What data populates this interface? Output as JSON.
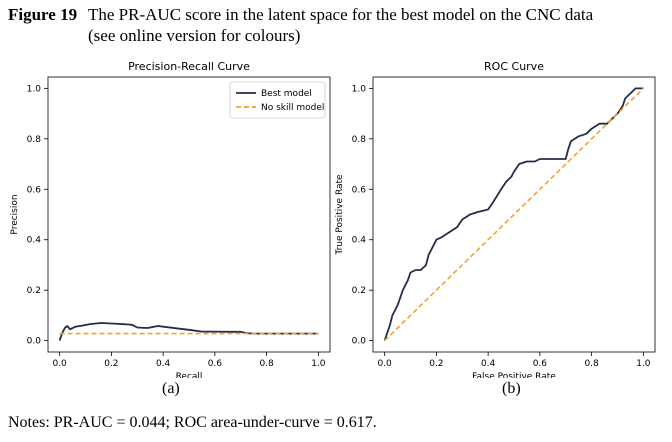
{
  "caption": {
    "label": "Figure 19",
    "line1": "The PR-AUC score in the latent space for the best model on the CNC data",
    "line2": "(see online version for colours)"
  },
  "colors": {
    "best": "#262b4a",
    "noskill": "#f2a32b"
  },
  "notes": "Notes: PR-AUC = 0.044; ROC area-under-curve = 0.617.",
  "chart_data": [
    {
      "type": "line",
      "subfig": "(a)",
      "title": "Precision-Recall Curve",
      "xlabel": "Recall",
      "ylabel": "Precision",
      "xlim": [
        0,
        1
      ],
      "ylim": [
        0,
        1
      ],
      "xticks": [
        "0.0",
        "0.2",
        "0.4",
        "0.6",
        "0.8",
        "1.0"
      ],
      "yticks": [
        "0.0",
        "0.2",
        "0.4",
        "0.6",
        "0.8",
        "1.0"
      ],
      "legend_position": "top-right",
      "series": [
        {
          "name": "Best model",
          "style": "solid",
          "color": "#262b4a",
          "x": [
            0.0,
            0.01,
            0.02,
            0.03,
            0.04,
            0.06,
            0.09,
            0.12,
            0.16,
            0.2,
            0.25,
            0.28,
            0.3,
            0.34,
            0.38,
            0.42,
            0.45,
            0.5,
            0.55,
            0.6,
            0.65,
            0.7,
            0.72,
            0.75,
            0.8,
            0.9,
            1.0
          ],
          "y": [
            0.0,
            0.03,
            0.05,
            0.058,
            0.045,
            0.055,
            0.06,
            0.066,
            0.07,
            0.068,
            0.065,
            0.063,
            0.052,
            0.05,
            0.058,
            0.053,
            0.049,
            0.043,
            0.036,
            0.036,
            0.035,
            0.035,
            0.03,
            0.028,
            0.028,
            0.028,
            0.028
          ]
        },
        {
          "name": "No skill model",
          "style": "dashed",
          "color": "#f2a32b",
          "x": [
            0,
            1
          ],
          "y": [
            0.028,
            0.028
          ]
        }
      ]
    },
    {
      "type": "line",
      "subfig": "(b)",
      "title": "ROC Curve",
      "xlabel": "False Positive Rate",
      "ylabel": "True Positive Rate",
      "xlim": [
        0,
        1
      ],
      "ylim": [
        0,
        1
      ],
      "xticks": [
        "0.0",
        "0.2",
        "0.4",
        "0.6",
        "0.8",
        "1.0"
      ],
      "yticks": [
        "0.0",
        "0.2",
        "0.4",
        "0.6",
        "0.8",
        "1.0"
      ],
      "series": [
        {
          "name": "",
          "style": "solid",
          "color": "#262b4a",
          "x": [
            0.0,
            0.01,
            0.02,
            0.03,
            0.05,
            0.06,
            0.07,
            0.09,
            0.1,
            0.12,
            0.14,
            0.16,
            0.17,
            0.19,
            0.2,
            0.22,
            0.25,
            0.28,
            0.3,
            0.33,
            0.36,
            0.4,
            0.42,
            0.45,
            0.47,
            0.49,
            0.5,
            0.52,
            0.55,
            0.58,
            0.6,
            0.62,
            0.63,
            0.65,
            0.7,
            0.71,
            0.72,
            0.75,
            0.78,
            0.8,
            0.83,
            0.86,
            0.87,
            0.88,
            0.9,
            0.92,
            0.93,
            0.95,
            0.97,
            1.0
          ],
          "y": [
            0.0,
            0.03,
            0.06,
            0.1,
            0.14,
            0.17,
            0.2,
            0.24,
            0.27,
            0.28,
            0.28,
            0.3,
            0.34,
            0.38,
            0.4,
            0.41,
            0.43,
            0.45,
            0.48,
            0.5,
            0.51,
            0.52,
            0.55,
            0.6,
            0.63,
            0.65,
            0.67,
            0.7,
            0.71,
            0.71,
            0.72,
            0.72,
            0.72,
            0.72,
            0.72,
            0.76,
            0.79,
            0.81,
            0.82,
            0.84,
            0.86,
            0.86,
            0.87,
            0.88,
            0.9,
            0.93,
            0.96,
            0.98,
            1.0,
            1.0
          ]
        },
        {
          "name": "",
          "style": "dashed",
          "color": "#f2a32b",
          "x": [
            0,
            1
          ],
          "y": [
            0,
            1
          ]
        }
      ]
    }
  ],
  "subfig_labels": [
    "(a)",
    "(b)"
  ]
}
